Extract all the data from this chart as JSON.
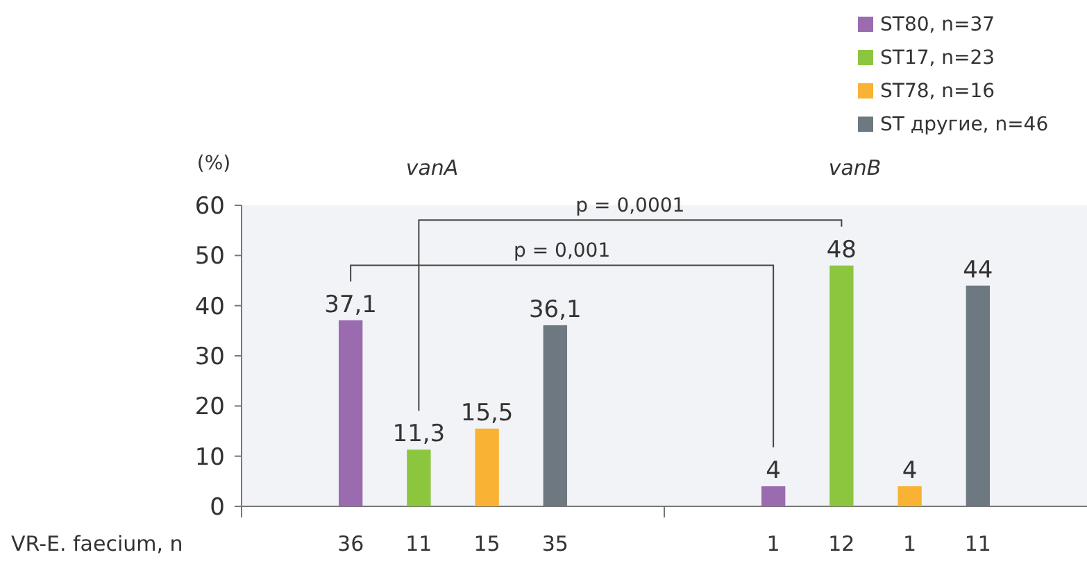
{
  "chart_data": {
    "type": "bar",
    "ylabel": "(%)",
    "categories": [
      "vanA",
      "vanB"
    ],
    "series": [
      {
        "name": "ST80, n=37",
        "color": "#9b6bb0",
        "values": [
          37.1,
          4
        ],
        "value_labels": [
          "37,1",
          "4"
        ]
      },
      {
        "name": "ST17, n=23",
        "color": "#8cc63f",
        "values": [
          11.3,
          48
        ],
        "value_labels": [
          "11,3",
          "48"
        ]
      },
      {
        "name": "ST78, n=16",
        "color": "#f9b233",
        "values": [
          15.5,
          4
        ],
        "value_labels": [
          "15,5",
          "4"
        ]
      },
      {
        "name": "ST другие, n=46",
        "color": "#6d7880",
        "values": [
          36.1,
          44
        ],
        "value_labels": [
          "36,1",
          "44"
        ]
      }
    ],
    "ylim": [
      0,
      60
    ],
    "yticks": [
      0,
      10,
      20,
      30,
      40,
      50,
      60
    ],
    "legend": "top right",
    "annotations": [
      "p = 0,0001",
      "p = 0,001",
      "VR-E. faecium, n",
      "36",
      "11",
      "15",
      "35",
      "1",
      "12",
      "1",
      "11"
    ]
  }
}
